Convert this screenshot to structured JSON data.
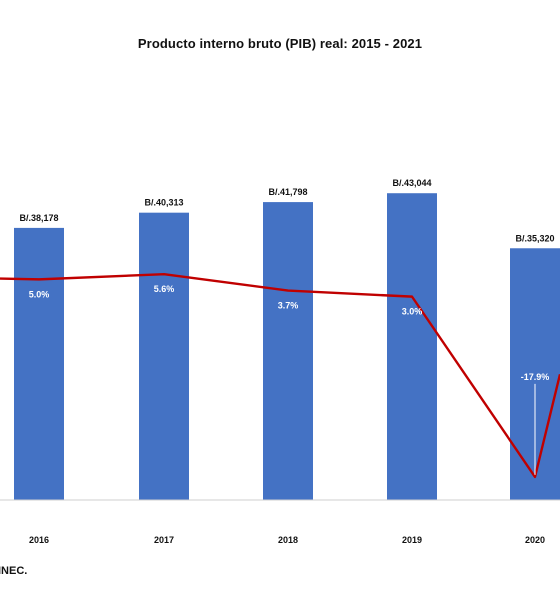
{
  "chart_data": {
    "type": "bar",
    "title": "Producto interno bruto (PIB) real: 2015 - 2021",
    "categories": [
      "2016",
      "2017",
      "2018",
      "2019",
      "2020"
    ],
    "series": [
      {
        "type": "bar",
        "values": [
          38178,
          40313,
          41798,
          43044,
          35320
        ],
        "data_labels": [
          "B/.38,178",
          "B/.40,313",
          "B/.41,798",
          "B/.43,044",
          "B/.35,320"
        ],
        "color": "#4472C4"
      },
      {
        "type": "line",
        "values": [
          5.0,
          5.6,
          3.7,
          3.0,
          -17.9
        ],
        "data_labels": [
          "5.0%",
          "5.6%",
          "3.7%",
          "3.0%",
          "-17.9%"
        ],
        "color": "#C00000"
      }
    ],
    "ylim_bar": [
      0,
      55000
    ],
    "ylim_line": [
      -20,
      20
    ],
    "xlabel": "",
    "ylabel": "",
    "grid": false,
    "legend": "none"
  },
  "footer": {
    "source": "INEC."
  }
}
